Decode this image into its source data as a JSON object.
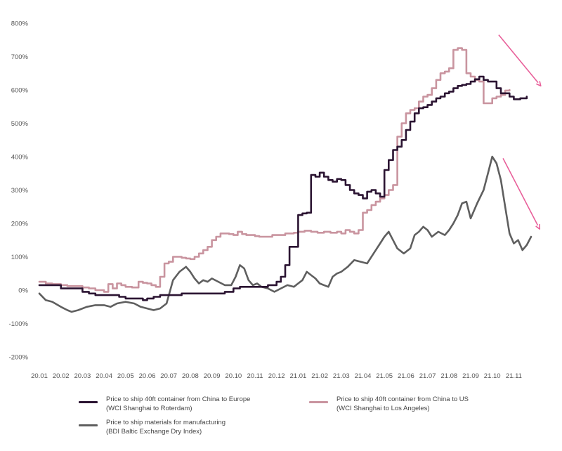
{
  "chart_data": {
    "type": "line",
    "title": "",
    "xlabel": "",
    "ylabel": "",
    "ylim": [
      -200,
      800
    ],
    "y_ticks": [
      -200,
      -100,
      0,
      100,
      200,
      300,
      400,
      500,
      600,
      700,
      800
    ],
    "y_tick_format": "%",
    "x_range": [
      0,
      23.3
    ],
    "x_ticks": [
      0,
      1,
      2,
      3,
      4,
      5,
      6,
      7,
      8,
      9,
      10,
      11,
      12,
      13,
      14,
      15,
      16,
      17,
      18,
      19,
      20,
      21,
      22
    ],
    "x_tick_labels": [
      "20.01",
      "20.02",
      "20.03",
      "20.04",
      "20.05",
      "20.06",
      "20.07",
      "20.08",
      "20.09",
      "20.10",
      "20.11",
      "20.12",
      "21.01",
      "21.02",
      "21.03",
      "21.04",
      "21.05",
      "21.06",
      "21.07",
      "21.08",
      "21.09",
      "21.10",
      "21.11"
    ],
    "grid": false,
    "legend": "bottom",
    "series": [
      {
        "key": "europe",
        "name_line1": "Price to ship 40ft container from China to Europe",
        "name_line2": "(WCI Shanghai to Roterdam)",
        "color": "#2b1432",
        "style": "step",
        "points": [
          [
            0.0,
            15
          ],
          [
            0.35,
            15
          ],
          [
            0.7,
            15
          ],
          [
            1.0,
            5
          ],
          [
            1.4,
            5
          ],
          [
            1.7,
            5
          ],
          [
            2.0,
            -5
          ],
          [
            2.3,
            -10
          ],
          [
            2.6,
            -15
          ],
          [
            3.0,
            -15
          ],
          [
            3.4,
            -15
          ],
          [
            3.7,
            -20
          ],
          [
            4.0,
            -25
          ],
          [
            4.3,
            -25
          ],
          [
            4.6,
            -25
          ],
          [
            4.8,
            -30
          ],
          [
            5.0,
            -25
          ],
          [
            5.3,
            -20
          ],
          [
            5.6,
            -15
          ],
          [
            6.0,
            -15
          ],
          [
            6.3,
            -15
          ],
          [
            6.6,
            -10
          ],
          [
            7.0,
            -10
          ],
          [
            7.3,
            -10
          ],
          [
            7.6,
            -10
          ],
          [
            8.0,
            -10
          ],
          [
            8.3,
            -10
          ],
          [
            8.6,
            -5
          ],
          [
            9.0,
            5
          ],
          [
            9.3,
            10
          ],
          [
            9.6,
            10
          ],
          [
            10.0,
            10
          ],
          [
            10.3,
            10
          ],
          [
            10.6,
            15
          ],
          [
            11.0,
            25
          ],
          [
            11.2,
            40
          ],
          [
            11.4,
            75
          ],
          [
            11.6,
            130
          ],
          [
            11.8,
            130
          ],
          [
            12.0,
            225
          ],
          [
            12.2,
            230
          ],
          [
            12.4,
            232
          ],
          [
            12.6,
            345
          ],
          [
            12.8,
            340
          ],
          [
            13.0,
            352
          ],
          [
            13.2,
            340
          ],
          [
            13.4,
            330
          ],
          [
            13.6,
            325
          ],
          [
            13.8,
            333
          ],
          [
            14.0,
            330
          ],
          [
            14.2,
            315
          ],
          [
            14.4,
            300
          ],
          [
            14.6,
            290
          ],
          [
            14.8,
            285
          ],
          [
            15.0,
            275
          ],
          [
            15.2,
            295
          ],
          [
            15.4,
            300
          ],
          [
            15.6,
            290
          ],
          [
            15.8,
            280
          ],
          [
            16.0,
            360
          ],
          [
            16.2,
            390
          ],
          [
            16.4,
            420
          ],
          [
            16.6,
            430
          ],
          [
            16.8,
            450
          ],
          [
            17.0,
            480
          ],
          [
            17.2,
            505
          ],
          [
            17.4,
            530
          ],
          [
            17.6,
            545
          ],
          [
            17.8,
            548
          ],
          [
            18.0,
            555
          ],
          [
            18.2,
            565
          ],
          [
            18.4,
            575
          ],
          [
            18.6,
            580
          ],
          [
            18.8,
            590
          ],
          [
            19.0,
            595
          ],
          [
            19.2,
            605
          ],
          [
            19.4,
            612
          ],
          [
            19.6,
            615
          ],
          [
            19.8,
            618
          ],
          [
            20.0,
            625
          ],
          [
            20.2,
            632
          ],
          [
            20.4,
            640
          ],
          [
            20.6,
            630
          ],
          [
            20.8,
            625
          ],
          [
            21.0,
            625
          ],
          [
            21.2,
            605
          ],
          [
            21.4,
            590
          ],
          [
            21.6,
            590
          ],
          [
            21.8,
            580
          ],
          [
            22.0,
            572
          ],
          [
            22.3,
            575
          ],
          [
            22.6,
            580
          ]
        ]
      },
      {
        "key": "us",
        "name_line1": "Price to ship 40ft container from China to US",
        "name_line2": "(WCI Shanghai to Los Angeles)",
        "color": "#c9949f",
        "style": "step",
        "points": [
          [
            0.0,
            25
          ],
          [
            0.3,
            20
          ],
          [
            0.6,
            18
          ],
          [
            1.0,
            15
          ],
          [
            1.3,
            12
          ],
          [
            1.6,
            12
          ],
          [
            2.0,
            8
          ],
          [
            2.3,
            5
          ],
          [
            2.6,
            0
          ],
          [
            3.0,
            -5
          ],
          [
            3.2,
            18
          ],
          [
            3.4,
            5
          ],
          [
            3.6,
            20
          ],
          [
            3.8,
            15
          ],
          [
            4.0,
            10
          ],
          [
            4.3,
            8
          ],
          [
            4.6,
            25
          ],
          [
            4.8,
            22
          ],
          [
            5.0,
            20
          ],
          [
            5.2,
            15
          ],
          [
            5.4,
            10
          ],
          [
            5.6,
            40
          ],
          [
            5.8,
            80
          ],
          [
            6.0,
            85
          ],
          [
            6.2,
            100
          ],
          [
            6.4,
            100
          ],
          [
            6.6,
            97
          ],
          [
            6.8,
            95
          ],
          [
            7.0,
            93
          ],
          [
            7.2,
            100
          ],
          [
            7.4,
            110
          ],
          [
            7.6,
            120
          ],
          [
            7.8,
            130
          ],
          [
            8.0,
            150
          ],
          [
            8.2,
            160
          ],
          [
            8.4,
            170
          ],
          [
            8.6,
            170
          ],
          [
            8.8,
            168
          ],
          [
            9.0,
            165
          ],
          [
            9.2,
            175
          ],
          [
            9.4,
            168
          ],
          [
            9.6,
            165
          ],
          [
            9.8,
            165
          ],
          [
            10.0,
            162
          ],
          [
            10.2,
            160
          ],
          [
            10.4,
            160
          ],
          [
            10.6,
            160
          ],
          [
            10.8,
            165
          ],
          [
            11.0,
            165
          ],
          [
            11.2,
            165
          ],
          [
            11.4,
            170
          ],
          [
            11.6,
            170
          ],
          [
            11.8,
            172
          ],
          [
            12.0,
            175
          ],
          [
            12.3,
            178
          ],
          [
            12.6,
            175
          ],
          [
            12.9,
            172
          ],
          [
            13.2,
            175
          ],
          [
            13.5,
            172
          ],
          [
            13.8,
            175
          ],
          [
            14.0,
            170
          ],
          [
            14.2,
            180
          ],
          [
            14.4,
            175
          ],
          [
            14.6,
            170
          ],
          [
            14.8,
            180
          ],
          [
            15.0,
            232
          ],
          [
            15.2,
            240
          ],
          [
            15.4,
            255
          ],
          [
            15.6,
            265
          ],
          [
            15.8,
            275
          ],
          [
            16.0,
            285
          ],
          [
            16.2,
            300
          ],
          [
            16.4,
            315
          ],
          [
            16.6,
            460
          ],
          [
            16.8,
            500
          ],
          [
            17.0,
            530
          ],
          [
            17.2,
            540
          ],
          [
            17.4,
            545
          ],
          [
            17.6,
            565
          ],
          [
            17.8,
            580
          ],
          [
            18.0,
            585
          ],
          [
            18.2,
            605
          ],
          [
            18.4,
            630
          ],
          [
            18.6,
            650
          ],
          [
            18.8,
            655
          ],
          [
            19.0,
            665
          ],
          [
            19.2,
            720
          ],
          [
            19.4,
            725
          ],
          [
            19.6,
            720
          ],
          [
            19.8,
            650
          ],
          [
            20.0,
            640
          ],
          [
            20.2,
            630
          ],
          [
            20.4,
            625
          ],
          [
            20.6,
            560
          ],
          [
            20.8,
            560
          ],
          [
            21.0,
            575
          ],
          [
            21.2,
            580
          ],
          [
            21.4,
            585
          ],
          [
            21.6,
            598
          ],
          [
            21.8,
            600
          ]
        ]
      },
      {
        "key": "bdi",
        "name_line1": "Price to ship materials for manufacturing",
        "name_line2": "(BDI Baltic Exchange Dry Index)",
        "color": "#5f5f5f",
        "style": "line",
        "points": [
          [
            0.0,
            -10
          ],
          [
            0.3,
            -30
          ],
          [
            0.6,
            -35
          ],
          [
            1.0,
            -50
          ],
          [
            1.3,
            -60
          ],
          [
            1.5,
            -65
          ],
          [
            1.8,
            -60
          ],
          [
            2.2,
            -50
          ],
          [
            2.6,
            -45
          ],
          [
            3.0,
            -45
          ],
          [
            3.3,
            -50
          ],
          [
            3.6,
            -40
          ],
          [
            4.0,
            -35
          ],
          [
            4.4,
            -40
          ],
          [
            4.7,
            -50
          ],
          [
            5.0,
            -55
          ],
          [
            5.3,
            -60
          ],
          [
            5.6,
            -55
          ],
          [
            5.9,
            -40
          ],
          [
            6.2,
            30
          ],
          [
            6.5,
            55
          ],
          [
            6.8,
            70
          ],
          [
            7.0,
            55
          ],
          [
            7.2,
            35
          ],
          [
            7.4,
            20
          ],
          [
            7.6,
            30
          ],
          [
            7.8,
            25
          ],
          [
            8.0,
            35
          ],
          [
            8.3,
            25
          ],
          [
            8.6,
            15
          ],
          [
            8.9,
            15
          ],
          [
            9.1,
            40
          ],
          [
            9.3,
            75
          ],
          [
            9.5,
            65
          ],
          [
            9.7,
            30
          ],
          [
            9.9,
            15
          ],
          [
            10.1,
            20
          ],
          [
            10.3,
            10
          ],
          [
            10.6,
            5
          ],
          [
            10.9,
            -5
          ],
          [
            11.2,
            5
          ],
          [
            11.5,
            15
          ],
          [
            11.8,
            10
          ],
          [
            12.0,
            20
          ],
          [
            12.2,
            30
          ],
          [
            12.4,
            55
          ],
          [
            12.6,
            45
          ],
          [
            12.8,
            35
          ],
          [
            13.0,
            20
          ],
          [
            13.2,
            15
          ],
          [
            13.4,
            10
          ],
          [
            13.6,
            40
          ],
          [
            13.8,
            50
          ],
          [
            14.0,
            55
          ],
          [
            14.3,
            70
          ],
          [
            14.6,
            90
          ],
          [
            14.9,
            85
          ],
          [
            15.2,
            80
          ],
          [
            15.5,
            110
          ],
          [
            15.8,
            140
          ],
          [
            16.0,
            160
          ],
          [
            16.2,
            175
          ],
          [
            16.4,
            150
          ],
          [
            16.6,
            125
          ],
          [
            16.9,
            110
          ],
          [
            17.2,
            125
          ],
          [
            17.4,
            165
          ],
          [
            17.6,
            175
          ],
          [
            17.8,
            190
          ],
          [
            18.0,
            180
          ],
          [
            18.2,
            160
          ],
          [
            18.5,
            175
          ],
          [
            18.8,
            165
          ],
          [
            19.0,
            180
          ],
          [
            19.2,
            200
          ],
          [
            19.4,
            225
          ],
          [
            19.6,
            260
          ],
          [
            19.8,
            265
          ],
          [
            20.0,
            215
          ],
          [
            20.3,
            260
          ],
          [
            20.6,
            300
          ],
          [
            20.8,
            350
          ],
          [
            21.0,
            400
          ],
          [
            21.2,
            380
          ],
          [
            21.4,
            330
          ],
          [
            21.6,
            250
          ],
          [
            21.8,
            170
          ],
          [
            22.0,
            140
          ],
          [
            22.2,
            150
          ],
          [
            22.4,
            120
          ],
          [
            22.6,
            135
          ],
          [
            22.8,
            160
          ]
        ]
      }
    ],
    "annotations": [
      {
        "type": "arrow",
        "color": "#e8609a",
        "from": [
          21.3,
          765
        ],
        "to": [
          23.25,
          612
        ]
      },
      {
        "type": "arrow",
        "color": "#e8609a",
        "from": [
          21.5,
          395
        ],
        "to": [
          23.2,
          183
        ]
      }
    ]
  }
}
